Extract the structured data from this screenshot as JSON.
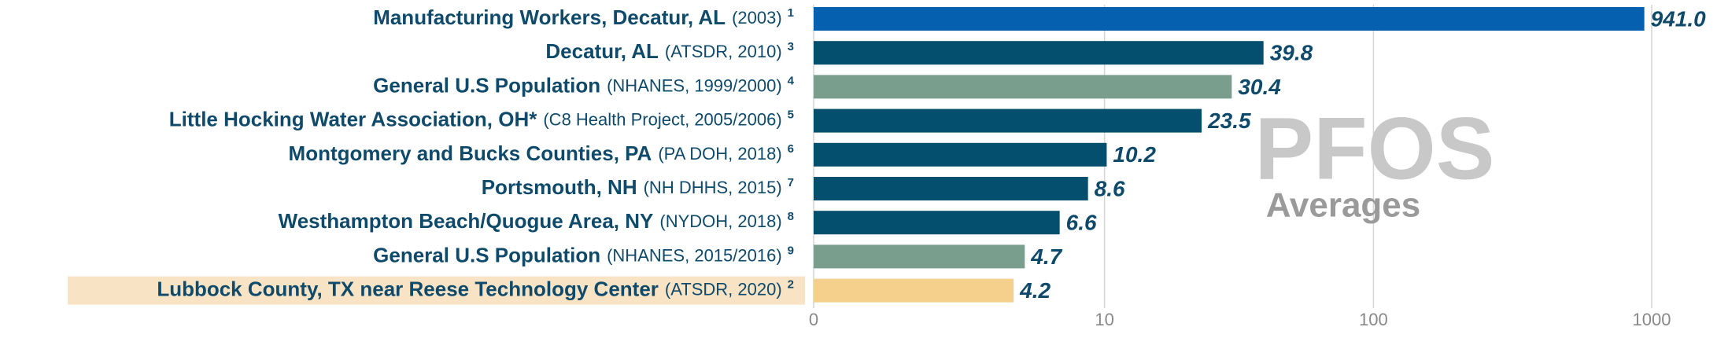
{
  "chart_data": {
    "type": "bar",
    "orientation": "horizontal",
    "xscale": "symlog",
    "categories": [
      "Manufacturing Workers, Decatur, AL",
      "Decatur, AL",
      "General U.S Population",
      "Little Hocking Water Association, OH*",
      "Montgomery and Bucks Counties, PA",
      "Portsmouth, NH",
      "Westhampton Beach/Quogue Area, NY",
      "General U.S Population",
      "Lubbock County, TX near Reese Technology Center"
    ],
    "category_sources": [
      "(2003)",
      "(ATSDR, 2010)",
      "(NHANES, 1999/2000)",
      "(C8 Health Project, 2005/2006)",
      "(PA DOH, 2018)",
      "(NH DHHS, 2015)",
      "(NYDOH, 2018)",
      "(NHANES, 2015/2016)",
      "(ATSDR, 2020)"
    ],
    "category_notes": [
      "1",
      "3",
      "4",
      "5",
      "6",
      "7",
      "8",
      "9",
      "2"
    ],
    "values": [
      941.0,
      39.8,
      30.4,
      23.5,
      10.2,
      8.6,
      6.6,
      4.7,
      4.2
    ],
    "value_labels": [
      "941.0",
      "39.8",
      "30.4",
      "23.5",
      "10.2",
      "8.6",
      "6.6",
      "4.7",
      "4.2"
    ],
    "colors": [
      "#0660b0",
      "#044e6e",
      "#7a9e8e",
      "#044e6e",
      "#044e6e",
      "#044e6e",
      "#044e6e",
      "#7a9e8e",
      "#f5cf8c"
    ],
    "highlight_category": 8,
    "highlight_color": "#f9e3c5",
    "xlim": [
      0,
      1000
    ],
    "xticks": [
      0,
      10,
      100,
      1000
    ],
    "grid": true,
    "annotation": "PFOS",
    "annotation_subtitle": "Averages"
  }
}
